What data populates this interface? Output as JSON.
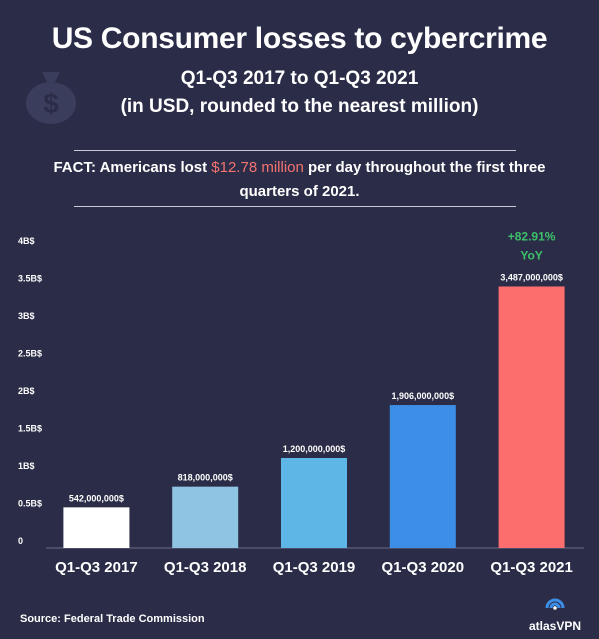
{
  "header": {
    "title": "US Consumer losses to cybercrime",
    "subtitle_line1": "Q1-Q3 2017 to Q1-Q3 2021",
    "subtitle_line2": "(in USD, rounded to the nearest million)"
  },
  "fact": {
    "label": "FACT:",
    "text_before": " Americans lost ",
    "highlight": "$12.78 million",
    "text_after": " per day throughout the first three quarters of 2021."
  },
  "source": "Source: Federal Trade Commission",
  "brand": "atlasVPN",
  "colors": {
    "background": "#2b2d48",
    "highlight": "#f4736f",
    "growth": "#3ec06a"
  },
  "chart_data": {
    "type": "bar",
    "categories": [
      "Q1-Q3 2017",
      "Q1-Q3 2018",
      "Q1-Q3 2019",
      "Q1-Q3 2020",
      "Q1-Q3 2021"
    ],
    "values": [
      542000000,
      818000000,
      1200000000,
      1906000000,
      3487000000
    ],
    "value_labels": [
      "542,000,000$",
      "818,000,000$",
      "1,200,000,000$",
      "1,906,000,000$",
      "3,487,000,000$"
    ],
    "bar_colors": [
      "#ffffff",
      "#8fc4e3",
      "#5db6e6",
      "#3d8ee6",
      "#fc6e6e"
    ],
    "yticks": [
      0,
      500000000,
      1000000000,
      1500000000,
      2000000000,
      2500000000,
      3000000000,
      3500000000,
      4000000000
    ],
    "ytick_labels": [
      "0",
      "0.5B$",
      "1B$",
      "1.5B$",
      "2B$",
      "2.5B$",
      "3B$",
      "3.5B$",
      "4B$"
    ],
    "ylim": [
      0,
      4000000000
    ],
    "annotation": {
      "category_index": 4,
      "line1": "+82.91%",
      "line2": "YoY"
    },
    "grid": false
  }
}
